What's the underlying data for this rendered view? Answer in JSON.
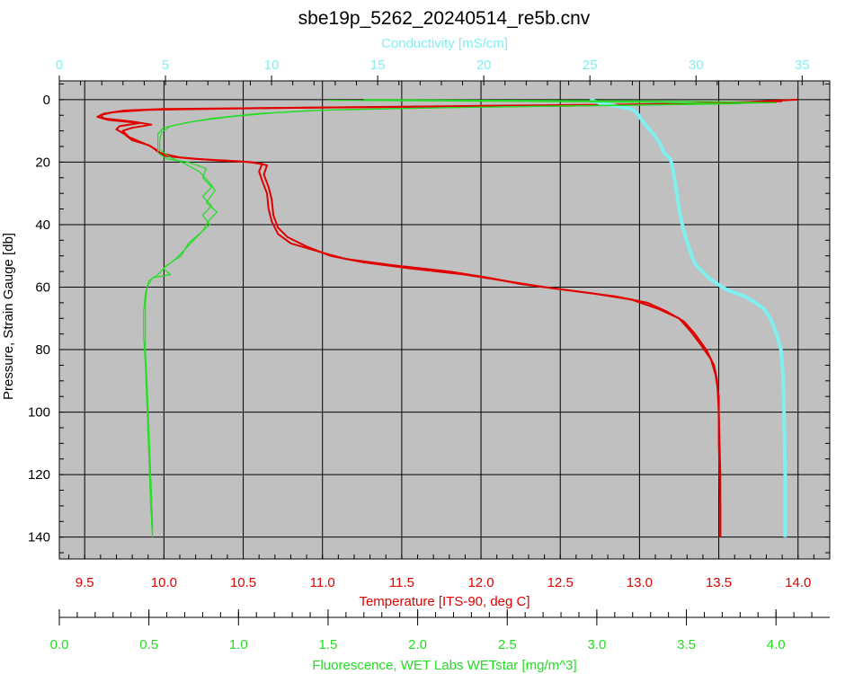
{
  "chart_data": {
    "type": "line",
    "title": "sbe19p_5262_20240514_re5b.cnv",
    "y_axis": {
      "label": "Pressure, Strain Gauge [db]",
      "range": [
        -6,
        147
      ],
      "inverted": true,
      "ticks": [
        "0",
        "20",
        "40",
        "60",
        "80",
        "100",
        "120",
        "140"
      ]
    },
    "x_axes": [
      {
        "id": "conductivity",
        "label": "Conductivity [mS/cm]",
        "position": "top",
        "color": "#7ff0f0",
        "range": [
          0,
          36.3
        ],
        "ticks": [
          "0",
          "5",
          "10",
          "15",
          "20",
          "25",
          "30",
          "35"
        ]
      },
      {
        "id": "temperature",
        "label": "Temperature [ITS-90, deg C]",
        "position": "bottom",
        "color": "#e00000",
        "range": [
          9.34,
          14.2
        ],
        "ticks": [
          "9.5",
          "10.0",
          "10.5",
          "11.0",
          "11.5",
          "12.0",
          "12.5",
          "13.0",
          "13.5",
          "14.0"
        ]
      },
      {
        "id": "fluorescence",
        "label": "Fluorescence, WET Labs WETstar [mg/m^3]",
        "position": "bottom-offset",
        "color": "#22dd22",
        "range": [
          0,
          4.3
        ],
        "ticks": [
          "0.0",
          "0.5",
          "1.0",
          "1.5",
          "2.0",
          "2.5",
          "3.0",
          "3.5",
          "4.0"
        ]
      }
    ],
    "grid": true,
    "series": [
      {
        "axis": "temperature",
        "color": "#e00000",
        "points": [
          [
            14.0,
            0
          ],
          [
            13.6,
            1
          ],
          [
            12.5,
            2
          ],
          [
            11.0,
            2.5
          ],
          [
            10.0,
            3
          ],
          [
            9.75,
            3.5
          ],
          [
            9.62,
            4.5
          ],
          [
            9.58,
            5.5
          ],
          [
            9.65,
            6.5
          ],
          [
            9.85,
            7.5
          ],
          [
            9.72,
            8.5
          ],
          [
            9.7,
            9.5
          ],
          [
            9.75,
            11
          ],
          [
            9.8,
            13
          ],
          [
            9.9,
            14.5
          ],
          [
            9.95,
            16
          ],
          [
            10.0,
            18
          ],
          [
            10.2,
            19
          ],
          [
            10.5,
            19.8
          ],
          [
            10.62,
            20.5
          ],
          [
            10.6,
            23
          ],
          [
            10.62,
            26
          ],
          [
            10.65,
            30
          ],
          [
            10.66,
            35
          ],
          [
            10.68,
            39
          ],
          [
            10.72,
            43
          ],
          [
            10.8,
            46
          ],
          [
            11.0,
            49
          ],
          [
            11.15,
            51
          ],
          [
            11.45,
            53
          ],
          [
            11.8,
            55
          ],
          [
            12.05,
            57
          ],
          [
            12.25,
            59
          ],
          [
            12.55,
            61
          ],
          [
            12.85,
            63
          ],
          [
            13.05,
            65
          ],
          [
            13.18,
            68
          ],
          [
            13.28,
            71
          ],
          [
            13.35,
            75
          ],
          [
            13.42,
            80
          ],
          [
            13.47,
            85
          ],
          [
            13.49,
            90
          ],
          [
            13.5,
            100
          ],
          [
            13.51,
            120
          ],
          [
            13.51,
            140
          ]
        ]
      },
      {
        "axis": "temperature",
        "color": "#e00000",
        "points": [
          [
            13.9,
            0.5
          ],
          [
            13.0,
            1.5
          ],
          [
            12.0,
            2
          ],
          [
            10.5,
            2.8
          ],
          [
            9.9,
            3.3
          ],
          [
            9.68,
            4
          ],
          [
            9.6,
            5
          ],
          [
            9.62,
            6
          ],
          [
            9.8,
            7
          ],
          [
            9.92,
            8
          ],
          [
            9.8,
            9
          ],
          [
            9.74,
            10
          ],
          [
            9.78,
            12
          ],
          [
            9.85,
            13.5
          ],
          [
            9.92,
            15
          ],
          [
            9.97,
            17
          ],
          [
            10.1,
            18.5
          ],
          [
            10.35,
            19.5
          ],
          [
            10.55,
            20
          ],
          [
            10.65,
            21
          ],
          [
            10.63,
            24
          ],
          [
            10.66,
            28
          ],
          [
            10.68,
            32
          ],
          [
            10.69,
            37
          ],
          [
            10.72,
            41
          ],
          [
            10.78,
            44
          ],
          [
            10.9,
            47
          ],
          [
            11.05,
            50
          ],
          [
            11.25,
            52
          ],
          [
            11.55,
            54
          ],
          [
            11.9,
            56
          ],
          [
            12.15,
            58
          ],
          [
            12.4,
            60
          ],
          [
            12.7,
            62
          ],
          [
            12.95,
            64
          ],
          [
            13.12,
            67
          ],
          [
            13.25,
            70
          ],
          [
            13.32,
            74
          ],
          [
            13.38,
            78
          ],
          [
            13.45,
            83
          ],
          [
            13.48,
            88
          ],
          [
            13.5,
            95
          ],
          [
            13.5,
            110
          ],
          [
            13.51,
            130
          ],
          [
            13.51,
            140
          ]
        ]
      },
      {
        "axis": "conductivity",
        "color": "#7ff0f0",
        "points": [
          [
            25.0,
            0
          ],
          [
            25.5,
            1.2
          ],
          [
            26.2,
            2
          ],
          [
            27.0,
            3
          ],
          [
            27.3,
            5
          ],
          [
            27.6,
            8
          ],
          [
            28.0,
            11
          ],
          [
            28.3,
            14
          ],
          [
            28.5,
            17
          ],
          [
            28.8,
            19
          ],
          [
            28.9,
            22
          ],
          [
            29.0,
            26
          ],
          [
            29.1,
            30
          ],
          [
            29.2,
            35
          ],
          [
            29.35,
            40
          ],
          [
            29.55,
            45
          ],
          [
            29.8,
            50
          ],
          [
            30.0,
            53
          ],
          [
            30.3,
            55
          ],
          [
            30.6,
            57
          ],
          [
            31.0,
            59
          ],
          [
            31.5,
            61
          ],
          [
            32.3,
            63
          ],
          [
            32.8,
            65
          ],
          [
            33.2,
            67
          ],
          [
            33.5,
            70
          ],
          [
            33.8,
            75
          ],
          [
            34.0,
            80
          ],
          [
            34.1,
            88
          ],
          [
            34.15,
            100
          ],
          [
            34.2,
            120
          ],
          [
            34.2,
            140
          ]
        ]
      },
      {
        "axis": "fluorescence",
        "color": "#22dd22",
        "points": [
          [
            1.7,
            0
          ],
          [
            3.5,
            0.5
          ],
          [
            4.0,
            1
          ],
          [
            3.5,
            1.5
          ],
          [
            2.8,
            2
          ],
          [
            2.2,
            2.5
          ],
          [
            1.8,
            3
          ],
          [
            1.4,
            3.5
          ],
          [
            1.1,
            4.5
          ],
          [
            0.85,
            6
          ],
          [
            0.7,
            7.5
          ],
          [
            0.58,
            9
          ],
          [
            0.55,
            11
          ],
          [
            0.55,
            14
          ],
          [
            0.55,
            17
          ],
          [
            0.6,
            19
          ],
          [
            0.72,
            20
          ],
          [
            0.82,
            22
          ],
          [
            0.8,
            25
          ],
          [
            0.85,
            28
          ],
          [
            0.8,
            31
          ],
          [
            0.85,
            34
          ],
          [
            0.8,
            37
          ],
          [
            0.84,
            40
          ],
          [
            0.78,
            43
          ],
          [
            0.72,
            46
          ],
          [
            0.68,
            50
          ],
          [
            0.6,
            53
          ],
          [
            0.55,
            56
          ],
          [
            0.5,
            58
          ],
          [
            0.48,
            62
          ],
          [
            0.47,
            68
          ],
          [
            0.47,
            75
          ],
          [
            0.48,
            85
          ],
          [
            0.49,
            100
          ],
          [
            0.5,
            115
          ],
          [
            0.51,
            130
          ],
          [
            0.52,
            140
          ]
        ]
      },
      {
        "axis": "fluorescence",
        "color": "#22dd22",
        "points": [
          [
            1.5,
            0.2
          ],
          [
            3.2,
            0.8
          ],
          [
            3.8,
            1.3
          ],
          [
            3.2,
            1.8
          ],
          [
            2.5,
            2.3
          ],
          [
            1.9,
            2.8
          ],
          [
            1.5,
            3.3
          ],
          [
            1.2,
            4.2
          ],
          [
            0.95,
            5.5
          ],
          [
            0.75,
            7
          ],
          [
            0.62,
            8.5
          ],
          [
            0.57,
            10.5
          ],
          [
            0.56,
            13
          ],
          [
            0.56,
            16
          ],
          [
            0.62,
            18.5
          ],
          [
            0.7,
            20.5
          ],
          [
            0.78,
            23
          ],
          [
            0.83,
            26
          ],
          [
            0.87,
            29
          ],
          [
            0.82,
            33
          ],
          [
            0.88,
            36
          ],
          [
            0.83,
            39
          ],
          [
            0.8,
            42
          ],
          [
            0.75,
            45
          ],
          [
            0.7,
            48
          ],
          [
            0.65,
            51
          ],
          [
            0.58,
            54
          ],
          [
            0.62,
            56
          ],
          [
            0.52,
            57
          ],
          [
            0.49,
            60
          ],
          [
            0.48,
            65
          ],
          [
            0.48,
            72
          ],
          [
            0.48,
            80
          ],
          [
            0.49,
            92
          ],
          [
            0.5,
            105
          ],
          [
            0.51,
            120
          ],
          [
            0.52,
            135
          ],
          [
            0.52,
            140
          ]
        ]
      }
    ]
  }
}
